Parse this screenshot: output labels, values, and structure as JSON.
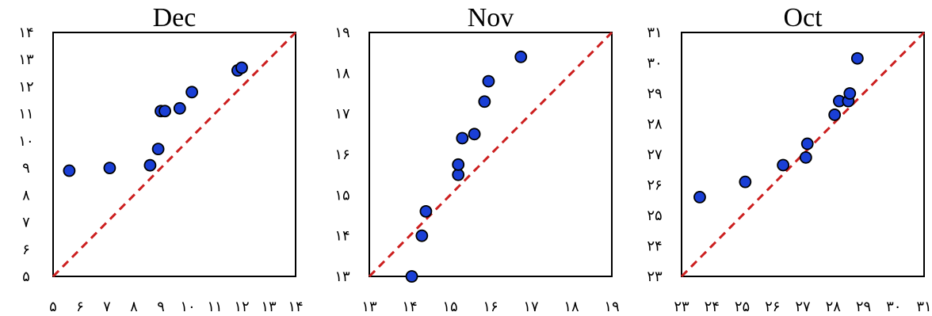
{
  "chart_data": [
    {
      "type": "scatter",
      "title": "Dec",
      "xlim": [
        5,
        14
      ],
      "ylim": [
        5,
        14
      ],
      "x_ticks": [
        "۵",
        "۶",
        "۷",
        "۸",
        "۹",
        "۱۰",
        "۱۱",
        "۱۲",
        "۱۳",
        "۱۴"
      ],
      "y_ticks": [
        "۵",
        "۶",
        "۷",
        "۸",
        "۹",
        "۱۰",
        "۱۱",
        "۱۲",
        "۱۳",
        "۱۴"
      ],
      "identity_line": true,
      "points": [
        {
          "x": 5.6,
          "y": 8.9
        },
        {
          "x": 7.1,
          "y": 9.0
        },
        {
          "x": 8.6,
          "y": 9.1
        },
        {
          "x": 8.9,
          "y": 9.7
        },
        {
          "x": 9.0,
          "y": 11.1
        },
        {
          "x": 9.15,
          "y": 11.1
        },
        {
          "x": 9.7,
          "y": 11.2
        },
        {
          "x": 10.15,
          "y": 11.8
        },
        {
          "x": 11.85,
          "y": 12.6
        },
        {
          "x": 12.0,
          "y": 12.7
        }
      ]
    },
    {
      "type": "scatter",
      "title": "Nov",
      "xlim": [
        13,
        19
      ],
      "ylim": [
        13,
        19
      ],
      "x_ticks": [
        "۱۳",
        "۱۴",
        "۱۵",
        "۱۶",
        "۱۷",
        "۱۸",
        "۱۹"
      ],
      "y_ticks": [
        "۱۳",
        "۱۴",
        "۱۵",
        "۱۶",
        "۱۷",
        "۱۸",
        "۱۹"
      ],
      "identity_line": true,
      "points": [
        {
          "x": 14.05,
          "y": 13.0
        },
        {
          "x": 14.3,
          "y": 14.0
        },
        {
          "x": 14.4,
          "y": 14.6
        },
        {
          "x": 15.2,
          "y": 15.5
        },
        {
          "x": 15.2,
          "y": 15.75
        },
        {
          "x": 15.3,
          "y": 16.4
        },
        {
          "x": 15.6,
          "y": 16.5
        },
        {
          "x": 15.85,
          "y": 17.3
        },
        {
          "x": 15.95,
          "y": 17.8
        },
        {
          "x": 16.75,
          "y": 18.4
        }
      ]
    },
    {
      "type": "scatter",
      "title": "Oct",
      "xlim": [
        23,
        31
      ],
      "ylim": [
        23,
        31
      ],
      "x_ticks": [
        "۲۳",
        "۲۴",
        "۲۵",
        "۲۶",
        "۲۷",
        "۲۸",
        "۲۹",
        "۳۰",
        "۳۱"
      ],
      "y_ticks": [
        "۲۳",
        "۲۴",
        "۲۵",
        "۲۶",
        "۲۷",
        "۲۸",
        "۲۹",
        "۳۰",
        "۳۱"
      ],
      "identity_line": true,
      "points": [
        {
          "x": 23.6,
          "y": 25.6
        },
        {
          "x": 25.1,
          "y": 26.1
        },
        {
          "x": 26.35,
          "y": 26.65
        },
        {
          "x": 27.1,
          "y": 26.9
        },
        {
          "x": 27.15,
          "y": 27.35
        },
        {
          "x": 28.05,
          "y": 28.3
        },
        {
          "x": 28.2,
          "y": 28.75
        },
        {
          "x": 28.5,
          "y": 28.75
        },
        {
          "x": 28.55,
          "y": 29.0
        },
        {
          "x": 28.8,
          "y": 30.15
        }
      ]
    }
  ]
}
